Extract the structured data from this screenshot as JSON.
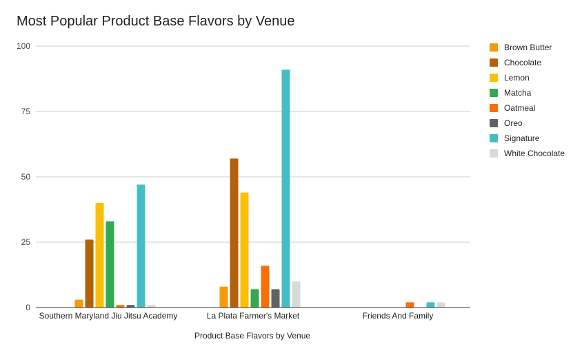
{
  "chart_data": {
    "type": "bar",
    "title": "Most Popular Product Base Flavors by Venue",
    "xlabel": "Product Base Flavors by Venue",
    "ylabel": "",
    "ylim": [
      0,
      100
    ],
    "yticks": [
      0,
      25,
      50,
      75,
      100
    ],
    "grid": true,
    "legend": "right",
    "categories": [
      "Southern Maryland Jiu Jitsu Academy",
      "La Plata Farmer's Market",
      "Friends And Family"
    ],
    "series": [
      {
        "name": "Brown Butter",
        "color": "#f59a0c",
        "values": [
          3,
          8,
          0
        ]
      },
      {
        "name": "Chocolate",
        "color": "#b5600b",
        "values": [
          26,
          57,
          0
        ]
      },
      {
        "name": "Lemon",
        "color": "#fbbf07",
        "values": [
          40,
          44,
          0
        ]
      },
      {
        "name": "Matcha",
        "color": "#34a853",
        "values": [
          33,
          7,
          0
        ]
      },
      {
        "name": "Oatmeal",
        "color": "#f86e07",
        "values": [
          1,
          16,
          2
        ]
      },
      {
        "name": "Oreo",
        "color": "#616161",
        "values": [
          1,
          7,
          0
        ]
      },
      {
        "name": "Signature",
        "color": "#46bdc6",
        "values": [
          47,
          91,
          2
        ]
      },
      {
        "name": "White Chocolate",
        "color": "#d9d9d9",
        "values": [
          1,
          10,
          2
        ]
      }
    ]
  }
}
